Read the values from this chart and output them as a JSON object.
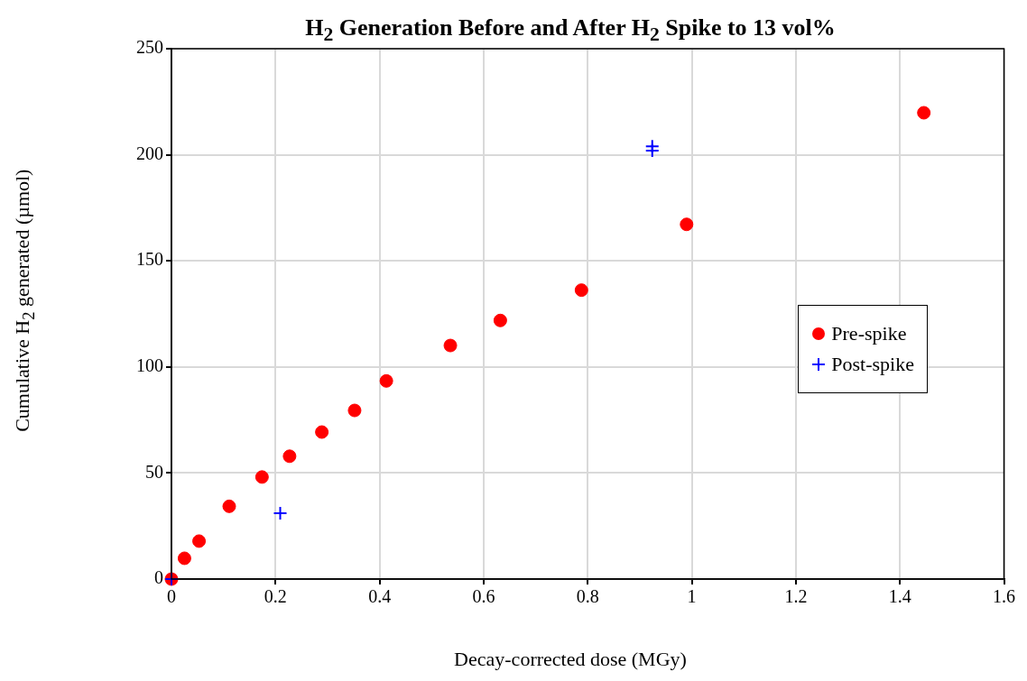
{
  "chart_data": {
    "type": "scatter",
    "title": "H$_{2}$ Generation Before and After H$_{2}$ Spike to 13 vol%",
    "xlabel": "Decay-corrected dose (MGy)",
    "ylabel": "Cumulative H$_{2}$ generated (µmol)",
    "xlim": [
      0,
      1.6
    ],
    "xticks": [
      0,
      0.2,
      0.4,
      0.6,
      0.8,
      1,
      1.2,
      1.4,
      1.6
    ],
    "ylim": [
      0,
      250
    ],
    "yticks": [
      0,
      50,
      100,
      150,
      200,
      250
    ],
    "grid": true,
    "legend": "right",
    "series": [
      {
        "name": "Pre-spike",
        "color": "#ff0000",
        "marker": "circle",
        "x": [
          0,
          0.025,
          0.053,
          0.111,
          0.174,
          0.227,
          0.289,
          0.352,
          0.413,
          0.536,
          0.632,
          0.788,
          0.99,
          1.446
        ],
        "values": [
          0,
          9.8,
          17.9,
          34.3,
          48.1,
          57.9,
          69.3,
          79.5,
          93.4,
          110.1,
          121.9,
          136.2,
          167.2,
          219.8
        ]
      },
      {
        "name": "Post-spike",
        "color": "#0000ff",
        "marker": "cross",
        "x": [
          0,
          0.209,
          0.924,
          0.924
        ],
        "values": [
          0,
          31,
          204,
          202
        ]
      }
    ]
  }
}
